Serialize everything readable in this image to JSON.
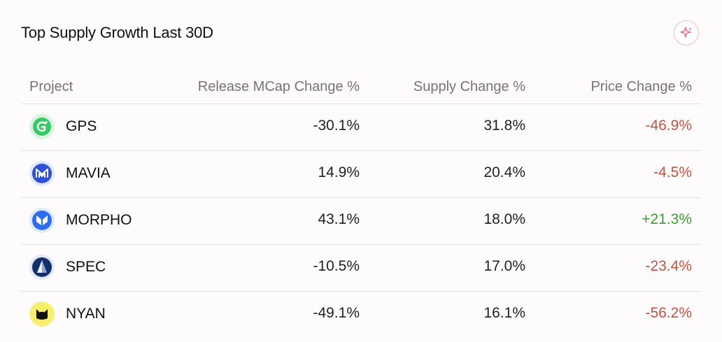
{
  "widget": {
    "title": "Top Supply Growth Last 30D",
    "ai_icon": "sparkle-icon"
  },
  "table": {
    "headers": [
      "Project",
      "Release MCap Change %",
      "Supply Change %",
      "Price Change %"
    ],
    "rows": [
      {
        "project": "GPS",
        "logo": "gps-logo-icon",
        "release_mcap_change": "-30.1%",
        "supply_change": "31.8%",
        "price_change": "-46.9%",
        "price_dir": "neg"
      },
      {
        "project": "MAVIA",
        "logo": "mavia-logo-icon",
        "release_mcap_change": "14.9%",
        "supply_change": "20.4%",
        "price_change": "-4.5%",
        "price_dir": "neg"
      },
      {
        "project": "MORPHO",
        "logo": "morpho-logo-icon",
        "release_mcap_change": "43.1%",
        "supply_change": "18.0%",
        "price_change": "+21.3%",
        "price_dir": "pos"
      },
      {
        "project": "SPEC",
        "logo": "spec-logo-icon",
        "release_mcap_change": "-10.5%",
        "supply_change": "17.0%",
        "price_change": "-23.4%",
        "price_dir": "neg"
      },
      {
        "project": "NYAN",
        "logo": "nyan-logo-icon",
        "release_mcap_change": "-49.1%",
        "supply_change": "16.1%",
        "price_change": "-56.2%",
        "price_dir": "neg"
      }
    ]
  },
  "colors": {
    "negative": "#c0543e",
    "positive": "#3e9a36",
    "header_text": "#7a7176",
    "divider": "#e4e1e3"
  }
}
